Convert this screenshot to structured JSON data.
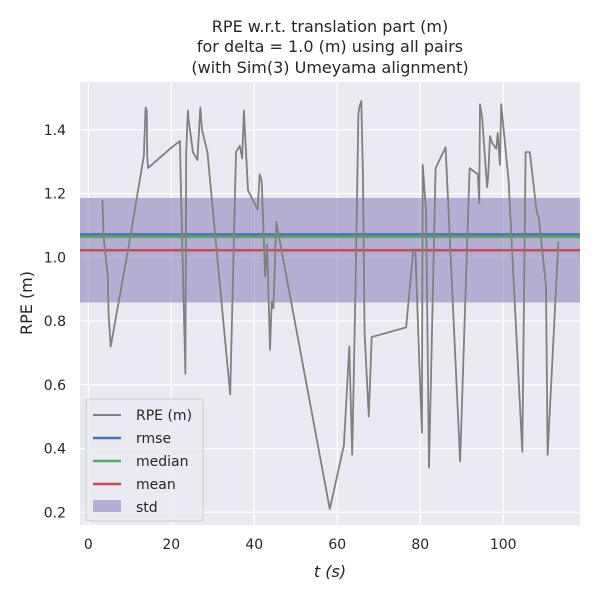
{
  "chart_data": {
    "type": "line",
    "title_lines": [
      "RPE w.r.t. translation part (m)",
      "for delta = 1.0 (m) using all pairs",
      "(with Sim(3) Umeyama alignment)"
    ],
    "xlabel": "t (s)",
    "ylabel": "RPE (m)",
    "xlim": [
      -2,
      118.5
    ],
    "ylim": [
      0.16,
      1.55
    ],
    "xticks": [
      0,
      20,
      40,
      60,
      80,
      100
    ],
    "xtick_labels": [
      "0",
      "20",
      "40",
      "60",
      "80",
      "100"
    ],
    "yticks": [
      0.2,
      0.4,
      0.6,
      0.8,
      1.0,
      1.2,
      1.4
    ],
    "ytick_labels": [
      "0.2",
      "0.4",
      "0.6",
      "0.8",
      "1.0",
      "1.2",
      "1.4"
    ],
    "grid": true,
    "background": "#eaeaf2",
    "legend_position": "lower-left",
    "series": [
      {
        "name": "RPE (m)",
        "color": "#808080",
        "x": [
          3.4,
          3.7,
          4.7,
          4.9,
          5.4,
          9.8,
          13.4,
          13.5,
          13.8,
          14.1,
          14.2,
          14.4,
          20.1,
          22.1,
          22.3,
          23.4,
          23.6,
          24.0,
          24.2,
          25.2,
          26.3,
          27.0,
          27.4,
          28.7,
          34.2,
          35.6,
          36.5,
          37.1,
          37.5,
          38.5,
          40.8,
          41.3,
          41.8,
          42.6,
          43.1,
          43.8,
          44.2,
          44.6,
          45.3,
          58.2,
          61.6,
          62.9,
          63.6,
          64.4,
          65.1,
          65.3,
          65.8,
          66.2,
          66.6,
          67.6,
          68.3,
          76.6,
          78.3,
          78.8,
          80.4,
          80.6,
          81.4,
          82.1,
          83.7,
          86.1,
          89.6,
          91.9,
          93.9,
          94.2,
          94.4,
          94.9,
          95.4,
          96.1,
          96.4,
          96.8,
          97.3,
          98.3,
          98.7,
          99.2,
          99.5,
          101.3,
          104.6,
          105.4,
          106.4,
          108.0,
          108.6,
          110.3,
          110.7,
          113.3
        ],
        "values": [
          1.18,
          1.06,
          0.94,
          0.82,
          0.72,
          1.04,
          1.32,
          1.36,
          1.47,
          1.46,
          1.32,
          1.28,
          1.345,
          1.365,
          1.23,
          0.634,
          1.33,
          1.46,
          1.43,
          1.33,
          1.305,
          1.47,
          1.4,
          1.33,
          0.57,
          1.33,
          1.35,
          1.31,
          1.46,
          1.21,
          1.15,
          1.26,
          1.24,
          0.94,
          1.04,
          0.71,
          0.86,
          0.84,
          1.11,
          0.21,
          0.41,
          0.72,
          0.38,
          0.9,
          1.45,
          1.47,
          1.49,
          1.25,
          0.76,
          0.5,
          0.75,
          0.78,
          1.02,
          1.02,
          0.45,
          1.29,
          1.14,
          0.34,
          1.28,
          1.345,
          0.36,
          1.28,
          1.26,
          1.17,
          1.48,
          1.44,
          1.35,
          1.22,
          1.26,
          1.38,
          1.36,
          1.34,
          1.39,
          1.29,
          1.48,
          1.24,
          0.39,
          1.33,
          1.33,
          1.15,
          1.12,
          0.91,
          0.38,
          1.05
        ]
      },
      {
        "name": "rmse",
        "color": "#4c72b0",
        "type": "hline",
        "value": 1.072
      },
      {
        "name": "median",
        "color": "#55a868",
        "type": "hline",
        "value": 1.064
      },
      {
        "name": "mean",
        "color": "#c44e52",
        "type": "hline",
        "value": 1.022
      },
      {
        "name": "std",
        "color": "#8172b2",
        "type": "band",
        "low": 0.858,
        "high": 1.186
      }
    ]
  }
}
